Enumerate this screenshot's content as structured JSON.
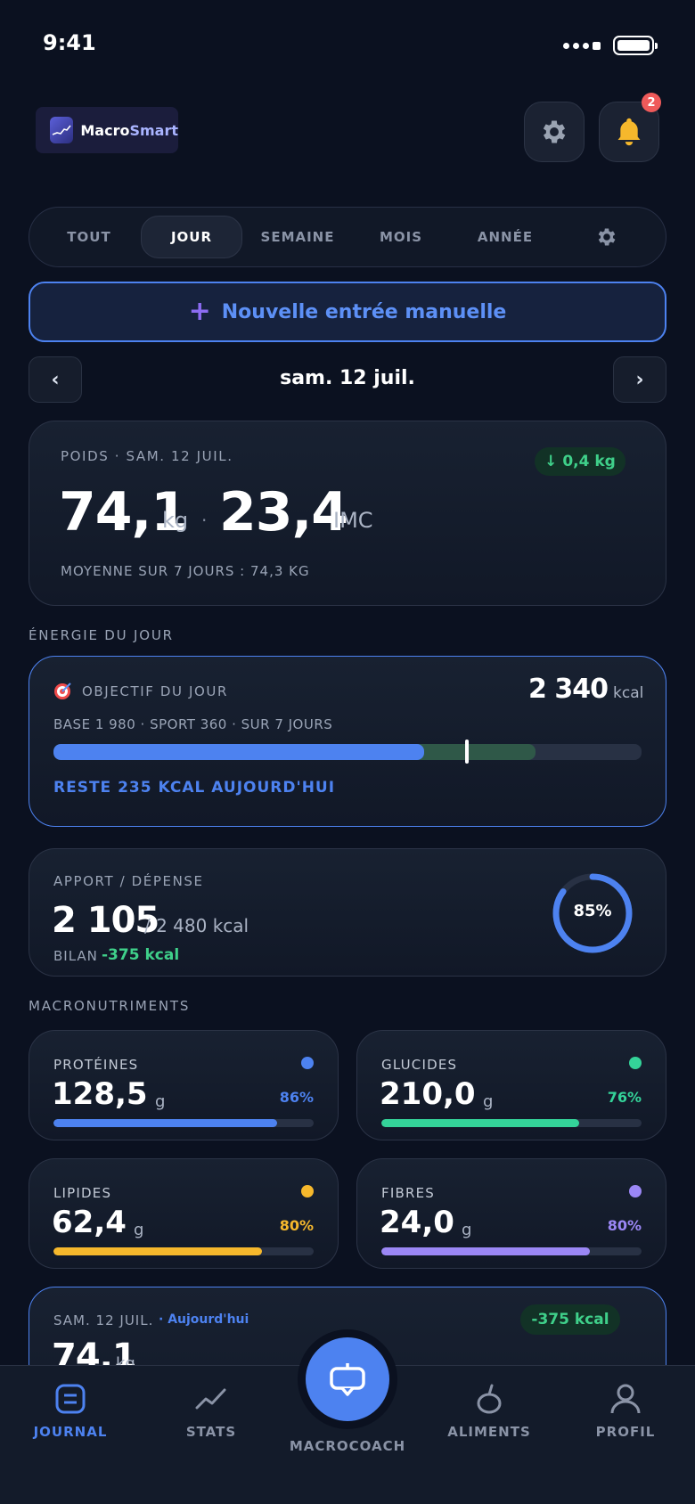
{
  "status": {
    "time": "9:41"
  },
  "brand": {
    "name_a": "Macro",
    "name_b": "Smart"
  },
  "notifications": {
    "count": "2"
  },
  "tabs": [
    "TOUT",
    "JOUR",
    "SEMAINE",
    "MOIS",
    "ANNÉE"
  ],
  "active_tab": "JOUR",
  "new_entry": {
    "plus": "+",
    "label": "Nouvelle entrée manuelle"
  },
  "date_nav": {
    "prev": "‹",
    "next": "›",
    "label": "sam. 12 juil."
  },
  "weight": {
    "caption": "POIDS · SAM. 12 JUIL.",
    "delta": "↓ 0,4 kg",
    "value": "74,1",
    "unit": "kg",
    "sep": "·",
    "bmi": "23,4",
    "bmi_label": "IMC",
    "average": "MOYENNE SUR 7 JOURS : 74,3 KG"
  },
  "energy_section": "ÉNERGIE DU JOUR",
  "goal": {
    "title": "OBJECTIF DU JOUR",
    "value": "2 340",
    "unit": "kcal",
    "breakdown": "BASE 1 980 · SPORT 360 · SUR 7 JOURS",
    "consumed_fraction": 0.63,
    "sport_fraction": 0.82,
    "marker_fraction": 0.7,
    "remaining": "RESTE 235 KCAL AUJOURD'HUI",
    "colors": {
      "consumed": "#4d82f0",
      "sport": "#2f5848",
      "marker": "#ffffff"
    }
  },
  "intake": {
    "caption": "APPORT / DÉPENSE",
    "value": "2 105",
    "total": "/ 2 480 kcal",
    "balance_label": "BILAN",
    "balance_value": "-375 kcal",
    "ring_percent": 85,
    "ring_label": "85%"
  },
  "macros_section": "MACRONUTRIMENTS",
  "macros": [
    {
      "name": "PROTÉINES",
      "value": "128,5",
      "unit": "g",
      "pct": "86%",
      "fraction": 0.86,
      "color": "#4d82f0"
    },
    {
      "name": "GLUCIDES",
      "value": "210,0",
      "unit": "g",
      "pct": "76%",
      "fraction": 0.76,
      "color": "#34d399"
    },
    {
      "name": "LIPIDES",
      "value": "62,4",
      "unit": "g",
      "pct": "80%",
      "fraction": 0.8,
      "color": "#f6b82c"
    },
    {
      "name": "FIBRES",
      "value": "24,0",
      "unit": "g",
      "pct": "80%",
      "fraction": 0.8,
      "color": "#9b87f5"
    }
  ],
  "day_card": {
    "date": "SAM. 12 JUIL.",
    "today": "· Aujourd'hui",
    "balance": "-375 kcal",
    "weight": "74,1",
    "unit": "kg"
  },
  "nav": {
    "journal": "JOURNAL",
    "stats": "STATS",
    "coach": "MACROCOACH",
    "aliments": "ALIMENTS",
    "profil": "PROFIL"
  }
}
